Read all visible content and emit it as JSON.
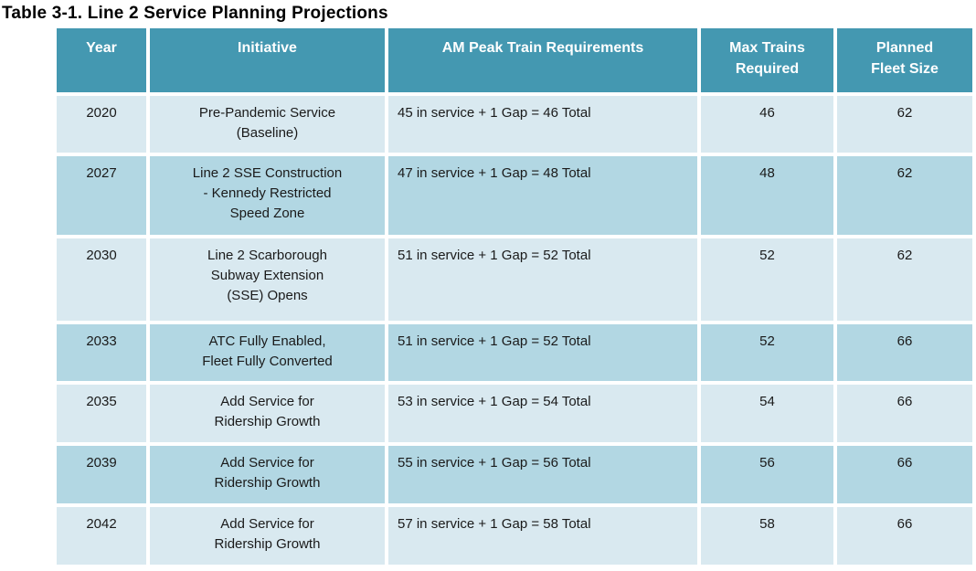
{
  "title": "Table 3-1. Line 2 Service Planning Projections",
  "colors": {
    "header_bg": "#4498B1",
    "header_text": "#FFFFFF",
    "row_light": "#D9E9F0",
    "row_dark": "#B2D7E3",
    "body_text": "#1A1A1A",
    "title_text": "#000000",
    "page_bg": "#FFFFFF"
  },
  "table": {
    "headers": {
      "year": "Year",
      "initiative": "Initiative",
      "am_peak": "AM Peak Train Requirements",
      "max_trains": "Max Trains\nRequired",
      "planned_fleet": "Planned\nFleet Size"
    },
    "rows": [
      {
        "year": "2020",
        "initiative": "Pre-Pandemic Service\n(Baseline)",
        "am_peak": "45 in service + 1 Gap = 46 Total",
        "max_trains": "46",
        "planned_fleet": "62"
      },
      {
        "year": "2027",
        "initiative": "Line 2 SSE Construction\n- Kennedy Restricted\nSpeed Zone",
        "am_peak": "47 in service + 1 Gap = 48 Total",
        "max_trains": "48",
        "planned_fleet": "62"
      },
      {
        "year": "2030",
        "initiative": "Line 2 Scarborough\nSubway Extension\n(SSE) Opens",
        "am_peak": "51 in service + 1 Gap = 52 Total",
        "max_trains": "52",
        "planned_fleet": "62"
      },
      {
        "year": "2033",
        "initiative": "ATC Fully Enabled,\nFleet Fully Converted",
        "am_peak": "51 in service + 1 Gap = 52 Total",
        "max_trains": "52",
        "planned_fleet": "66"
      },
      {
        "year": "2035",
        "initiative": "Add Service for\nRidership Growth",
        "am_peak": "53 in service + 1 Gap = 54 Total",
        "max_trains": "54",
        "planned_fleet": "66"
      },
      {
        "year": "2039",
        "initiative": "Add Service for\nRidership Growth",
        "am_peak": "55 in service + 1 Gap = 56 Total",
        "max_trains": "56",
        "planned_fleet": "66"
      },
      {
        "year": "2042",
        "initiative": "Add Service for\nRidership Growth",
        "am_peak": "57 in service + 1 Gap = 58 Total",
        "max_trains": "58",
        "planned_fleet": "66"
      }
    ]
  }
}
